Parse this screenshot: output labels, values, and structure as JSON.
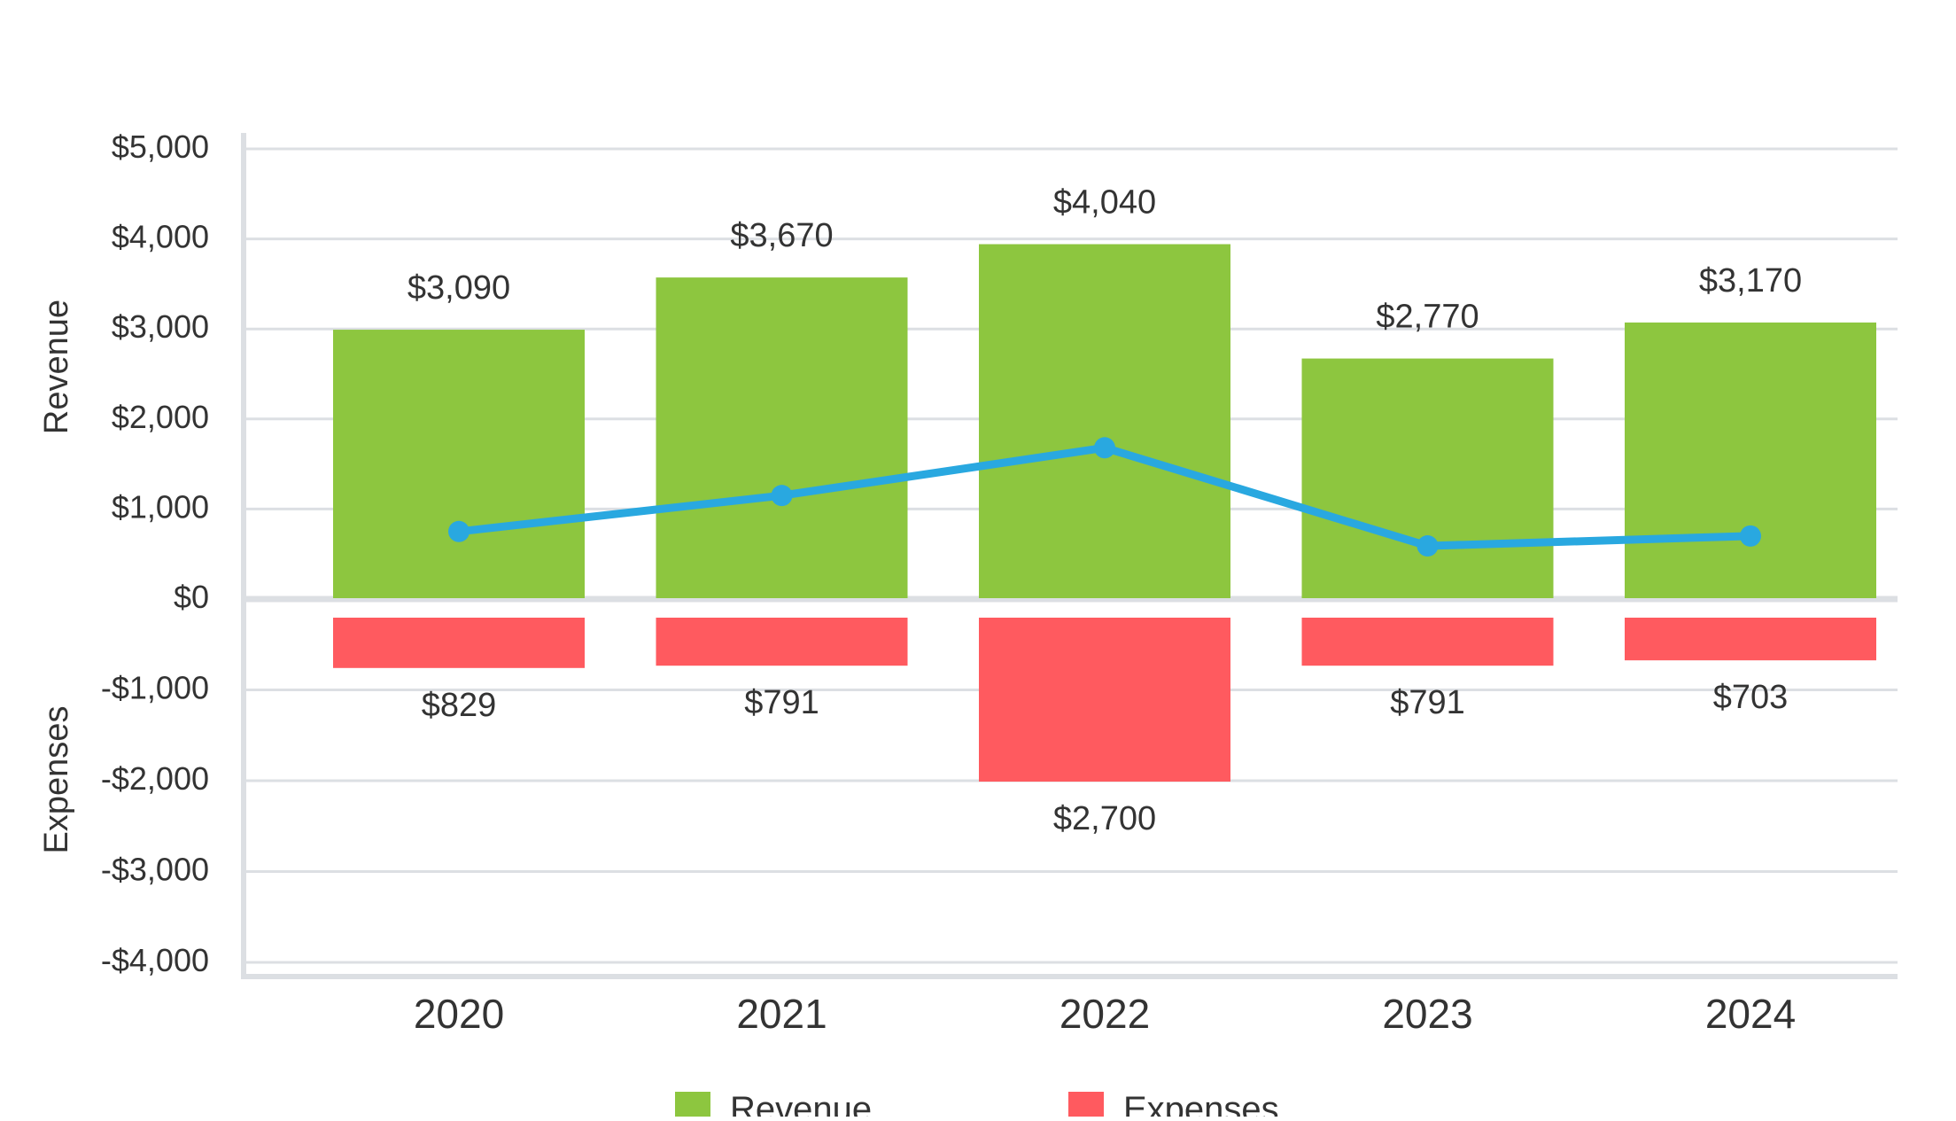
{
  "chart_data": {
    "type": "bar",
    "categories": [
      "2020",
      "2021",
      "2022",
      "2023",
      "2024"
    ],
    "series": [
      {
        "name": "Revenue",
        "values": [
          3090,
          3670,
          4040,
          2770,
          3170
        ],
        "labels": [
          "$3,090",
          "$3,670",
          "$4,040",
          "$2,770",
          "$3,170"
        ],
        "color": "#8dc63f"
      },
      {
        "name": "Expenses",
        "values": [
          829,
          791,
          2700,
          791,
          703
        ],
        "labels": [
          "$829",
          "$791",
          "$2,700",
          "$791",
          "$703"
        ],
        "color": "#ff5a5f"
      }
    ],
    "line": {
      "values": [
        750,
        1150,
        1680,
        590,
        700
      ],
      "color": "#29a8e0"
    },
    "ylabel_top": "Revenue",
    "ylabel_bottom": "Expenses",
    "ylim": [
      -4000,
      5000
    ],
    "yticks": [
      5000,
      4000,
      3000,
      2000,
      1000,
      0,
      -1000,
      -2000,
      -3000,
      -4000
    ],
    "ytick_labels": [
      "$5,000",
      "$4,000",
      "$3,000",
      "$2,000",
      "$1,000",
      "$0",
      "-$1,000",
      "-$2,000",
      "-$3,000",
      "-$4,000"
    ],
    "grid": true,
    "legend_position": "bottom-center",
    "legend": [
      "Revenue",
      "Expenses"
    ]
  }
}
